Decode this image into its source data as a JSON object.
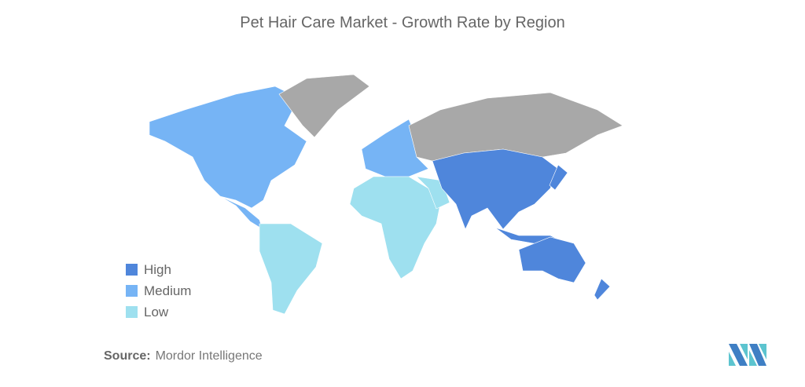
{
  "title": "Pet Hair Care Market - Growth Rate by Region",
  "colors": {
    "High": "#4f86db",
    "Medium": "#76b4f5",
    "Low": "#9ee0ef",
    "No data": "#a8a8a8"
  },
  "legend": [
    {
      "label": "High",
      "color": "#4f86db"
    },
    {
      "label": "Medium",
      "color": "#76b4f5"
    },
    {
      "label": "Low",
      "color": "#9ee0ef"
    }
  ],
  "regions": {
    "North America": "Medium",
    "Europe": "Medium",
    "South America": "Low",
    "Africa": "Low",
    "Middle East": "Low",
    "Asia-Pacific": "High",
    "Russia": "No data",
    "Greenland": "No data"
  },
  "source": {
    "label": "Source:",
    "value": "Mordor Intelligence"
  },
  "logo": "mordor-intelligence-logo"
}
